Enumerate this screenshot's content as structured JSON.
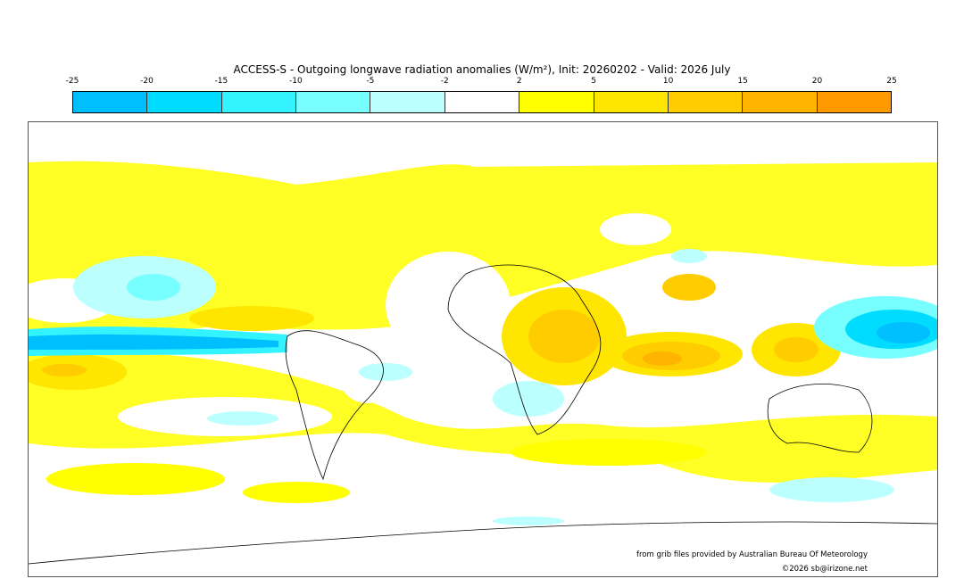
{
  "title": "ACCESS-S - Outgoing longwave radiation anomalies (W/m²), Init: 20260202 - Valid: 2026 July",
  "colorbar": {
    "ticks": [
      "-25",
      "-20",
      "-15",
      "-10",
      "-5",
      "-2",
      "2",
      "5",
      "10",
      "15",
      "20",
      "25"
    ],
    "colors": [
      "#00bfff",
      "#00dcff",
      "#33f3ff",
      "#77ffff",
      "#bbffff",
      "#ffffff",
      "#ffff00",
      "#ffe600",
      "#ffcc00",
      "#ffb400",
      "#ff9a00"
    ]
  },
  "credits": {
    "source": "from grib files provided by Australian Bureau Of Meteorology",
    "copyright": "©2026 sb@irizone.net"
  }
}
